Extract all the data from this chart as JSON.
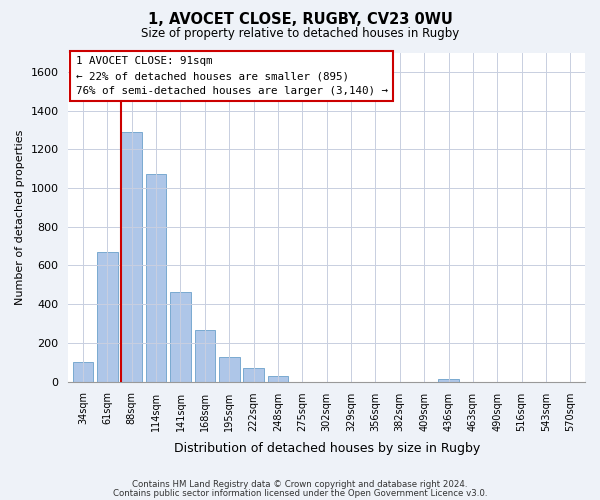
{
  "title1": "1, AVOCET CLOSE, RUGBY, CV23 0WU",
  "title2": "Size of property relative to detached houses in Rugby",
  "xlabel": "Distribution of detached houses by size in Rugby",
  "ylabel": "Number of detached properties",
  "bar_labels": [
    "34sqm",
    "61sqm",
    "88sqm",
    "114sqm",
    "141sqm",
    "168sqm",
    "195sqm",
    "222sqm",
    "248sqm",
    "275sqm",
    "302sqm",
    "329sqm",
    "356sqm",
    "382sqm",
    "409sqm",
    "436sqm",
    "463sqm",
    "490sqm",
    "516sqm",
    "543sqm",
    "570sqm"
  ],
  "bar_values": [
    100,
    670,
    1290,
    1070,
    465,
    265,
    128,
    72,
    30,
    0,
    0,
    0,
    0,
    0,
    0,
    15,
    0,
    0,
    0,
    0,
    0
  ],
  "bar_color": "#aec6e8",
  "bar_edge_color": "#7aaad0",
  "highlight_bar_index": 2,
  "highlight_color": "#cc0000",
  "annotation_title": "1 AVOCET CLOSE: 91sqm",
  "annotation_line1": "← 22% of detached houses are smaller (895)",
  "annotation_line2": "76% of semi-detached houses are larger (3,140) →",
  "annotation_box_color": "#ffffff",
  "annotation_box_edge": "#cc0000",
  "ylim": [
    0,
    1700
  ],
  "yticks": [
    0,
    200,
    400,
    600,
    800,
    1000,
    1200,
    1400,
    1600
  ],
  "footer1": "Contains HM Land Registry data © Crown copyright and database right 2024.",
  "footer2": "Contains public sector information licensed under the Open Government Licence v3.0.",
  "bg_color": "#eef2f8",
  "plot_bg_color": "#ffffff",
  "grid_color": "#c8cfe0"
}
